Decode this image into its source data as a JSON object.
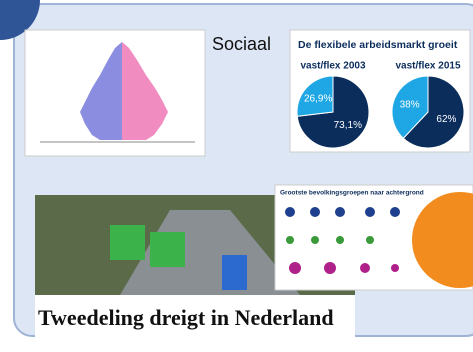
{
  "slide_title": "Sociaal",
  "flex_chart": {
    "type": "pie",
    "title": "De flexibele arbeidsmarkt groeit",
    "pies": [
      {
        "label": "vast/flex 2003",
        "values": [
          73.1,
          26.9
        ],
        "value_labels": [
          "73,1%",
          "26,9%"
        ],
        "colors": [
          "#0b2d5c",
          "#1ea7e4"
        ]
      },
      {
        "label": "vast/flex 2015",
        "values": [
          62,
          38
        ],
        "value_labels": [
          "62%",
          "38%"
        ],
        "colors": [
          "#0b2d5c",
          "#1ea7e4"
        ]
      }
    ]
  },
  "photo_headline": "Tweedeling dreigt in Nederland",
  "infographic_title": "Grootste bevolkingsgroepen naar achtergrond"
}
